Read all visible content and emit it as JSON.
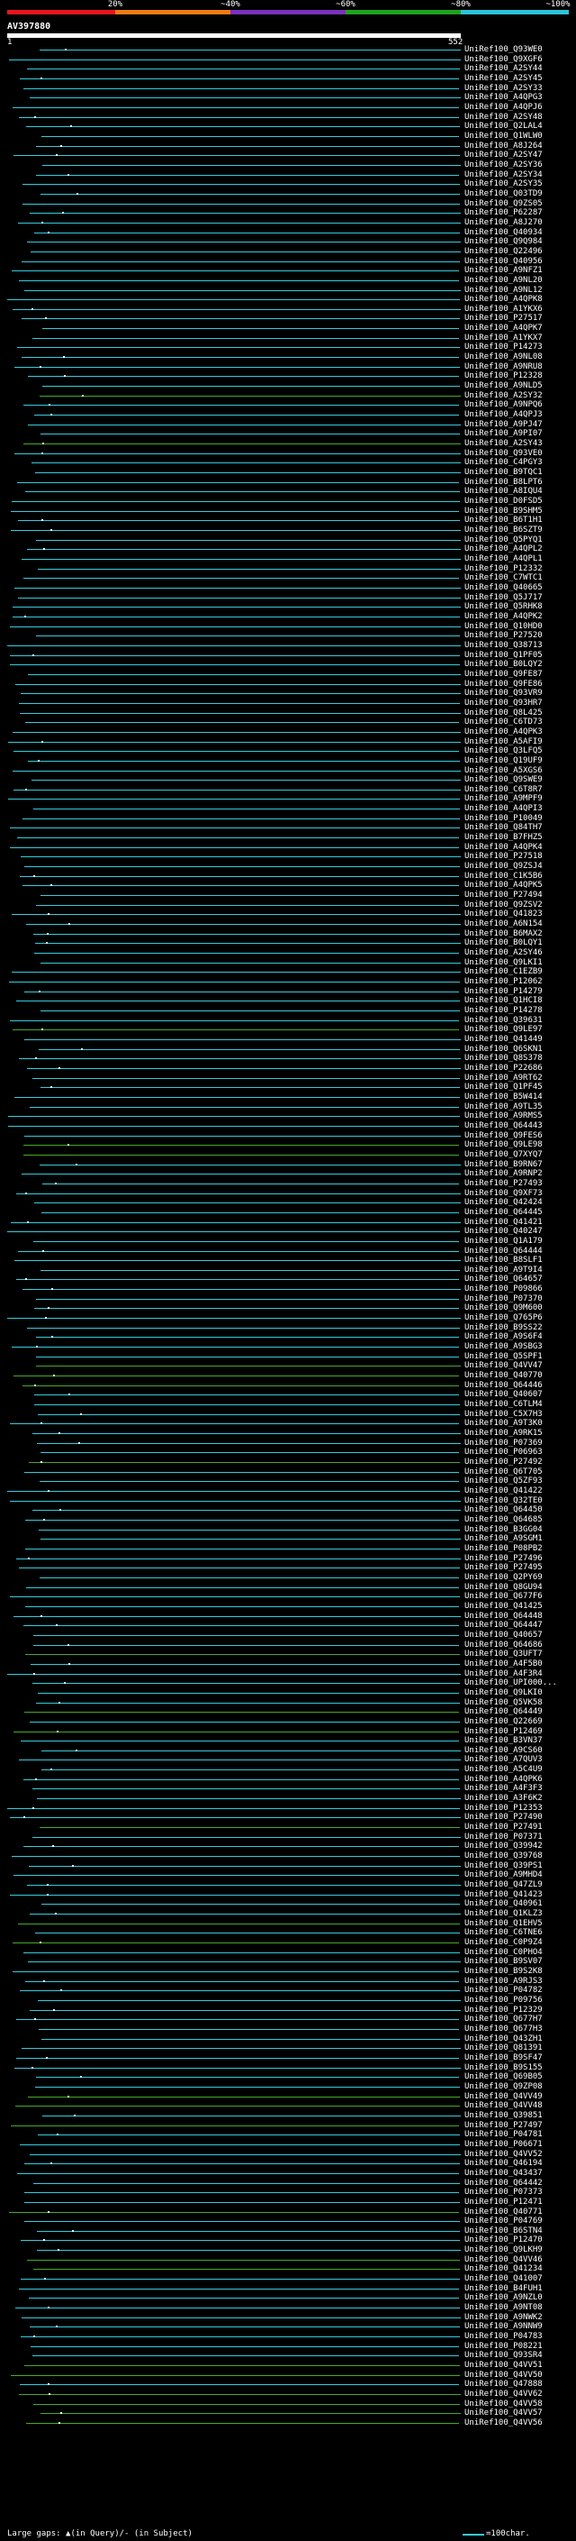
{
  "legend": {
    "labels": [
      "20%",
      "~40%",
      "~60%",
      "~80%",
      "~100%"
    ],
    "colors": [
      "#e8151c",
      "#f07a12",
      "#7b2fbf",
      "#1da31d",
      "#2ac4d8"
    ]
  },
  "query": {
    "name": "AV397880",
    "start_label": "1",
    "end_label": "552"
  },
  "footer": {
    "gap_text": "Large gaps: ▲(in Query)/- (in Subject)",
    "scale_text": "=100char."
  },
  "hits": [
    {
      "id": "UniRef100_Q93WE0",
      "color": "cyan"
    },
    {
      "id": "UniRef100_Q9XGF6",
      "color": "cyan"
    },
    {
      "id": "UniRef100_A2SY44",
      "color": "cyan"
    },
    {
      "id": "UniRef100_A2SY45",
      "color": "cyan"
    },
    {
      "id": "UniRef100_A2SY33",
      "color": "cyan"
    },
    {
      "id": "UniRef100_A4QPG3",
      "color": "cyan"
    },
    {
      "id": "UniRef100_A4QPJ6",
      "color": "cyan"
    },
    {
      "id": "UniRef100_A2SY48",
      "color": "cyan"
    },
    {
      "id": "UniRef100_Q2LAL4",
      "color": "cyan"
    },
    {
      "id": "UniRef100_Q1WLW0",
      "color": "cyan"
    },
    {
      "id": "UniRef100_A8J264",
      "color": "cyan"
    },
    {
      "id": "UniRef100_A2SY47",
      "color": "cyan"
    },
    {
      "id": "UniRef100_A2SY36",
      "color": "cyan"
    },
    {
      "id": "UniRef100_A2SY34",
      "color": "cyan"
    },
    {
      "id": "UniRef100_A2SY35",
      "color": "cyan"
    },
    {
      "id": "UniRef100_Q03TD9",
      "color": "cyan"
    },
    {
      "id": "UniRef100_Q9ZS05",
      "color": "cyan"
    },
    {
      "id": "UniRef100_P62287",
      "color": "cyan"
    },
    {
      "id": "UniRef100_A8J270",
      "color": "cyan"
    },
    {
      "id": "UniRef100_Q40934",
      "color": "cyan"
    },
    {
      "id": "UniRef100_Q9Q984",
      "color": "cyan"
    },
    {
      "id": "UniRef100_Q22496",
      "color": "cyan"
    },
    {
      "id": "UniRef100_Q40956",
      "color": "cyan"
    },
    {
      "id": "UniRef100_A9NFZ1",
      "color": "cyan"
    },
    {
      "id": "UniRef100_A9NL20",
      "color": "cyan"
    },
    {
      "id": "UniRef100_A9NL12",
      "color": "cyan"
    },
    {
      "id": "UniRef100_A4QPK8",
      "color": "cyan"
    },
    {
      "id": "UniRef100_A1YKX6",
      "color": "cyan"
    },
    {
      "id": "UniRef100_P27517",
      "color": "cyan"
    },
    {
      "id": "UniRef100_A4QPK7",
      "color": "cyan"
    },
    {
      "id": "UniRef100_A1YKX7",
      "color": "cyan"
    },
    {
      "id": "UniRef100_P14273",
      "color": "cyan"
    },
    {
      "id": "UniRef100_A9NL08",
      "color": "cyan"
    },
    {
      "id": "UniRef100_A9NRU8",
      "color": "cyan"
    },
    {
      "id": "UniRef100_P12328",
      "color": "cyan"
    },
    {
      "id": "UniRef100_A9NLD5",
      "color": "cyan"
    },
    {
      "id": "UniRef100_A2SY32",
      "color": "green"
    },
    {
      "id": "UniRef100_A9NPQ6",
      "color": "cyan"
    },
    {
      "id": "UniRef100_A4QPJ3",
      "color": "cyan"
    },
    {
      "id": "UniRef100_A9PJ47",
      "color": "cyan"
    },
    {
      "id": "UniRef100_A9PI07",
      "color": "cyan"
    },
    {
      "id": "UniRef100_A2SY43",
      "color": "green"
    },
    {
      "id": "UniRef100_Q93VE0",
      "color": "cyan"
    },
    {
      "id": "UniRef100_C4PGY3",
      "color": "cyan"
    },
    {
      "id": "UniRef100_B9TQC1",
      "color": "cyan"
    },
    {
      "id": "UniRef100_B8LPT6",
      "color": "cyan"
    },
    {
      "id": "UniRef100_A8IQU4",
      "color": "cyan"
    },
    {
      "id": "UniRef100_D0FSD5",
      "color": "cyan"
    },
    {
      "id": "UniRef100_B9SHM5",
      "color": "cyan"
    },
    {
      "id": "UniRef100_B6T1H1",
      "color": "cyan"
    },
    {
      "id": "UniRef100_B6SZT9",
      "color": "cyan"
    },
    {
      "id": "UniRef100_Q5PYQ1",
      "color": "cyan"
    },
    {
      "id": "UniRef100_A4QPL2",
      "color": "cyan"
    },
    {
      "id": "UniRef100_A4QPL1",
      "color": "cyan"
    },
    {
      "id": "UniRef100_P12332",
      "color": "cyan"
    },
    {
      "id": "UniRef100_C7WTC1",
      "color": "cyan"
    },
    {
      "id": "UniRef100_Q40665",
      "color": "cyan"
    },
    {
      "id": "UniRef100_Q5J717",
      "color": "cyan"
    },
    {
      "id": "UniRef100_Q5RHK8",
      "color": "cyan"
    },
    {
      "id": "UniRef100_A4QPK2",
      "color": "cyan"
    },
    {
      "id": "UniRef100_Q10HD0",
      "color": "cyan"
    },
    {
      "id": "UniRef100_P27520",
      "color": "cyan"
    },
    {
      "id": "UniRef100_Q38713",
      "color": "cyan"
    },
    {
      "id": "UniRef100_Q1PF05",
      "color": "cyan"
    },
    {
      "id": "UniRef100_B0LQY2",
      "color": "cyan"
    },
    {
      "id": "UniRef100_Q9FE87",
      "color": "cyan"
    },
    {
      "id": "UniRef100_Q9FE86",
      "color": "cyan"
    },
    {
      "id": "UniRef100_Q93VR9",
      "color": "cyan"
    },
    {
      "id": "UniRef100_Q93HR7",
      "color": "cyan"
    },
    {
      "id": "UniRef100_Q8L425",
      "color": "cyan"
    },
    {
      "id": "UniRef100_C6TD73",
      "color": "cyan"
    },
    {
      "id": "UniRef100_A4QPK3",
      "color": "cyan"
    },
    {
      "id": "UniRef100_A5AFI9",
      "color": "cyan"
    },
    {
      "id": "UniRef100_Q3LFQ5",
      "color": "cyan"
    },
    {
      "id": "UniRef100_Q19UF9",
      "color": "cyan"
    },
    {
      "id": "UniRef100_A5XGS6",
      "color": "cyan"
    },
    {
      "id": "UniRef100_Q9SWE9",
      "color": "cyan"
    },
    {
      "id": "UniRef100_C6T8R7",
      "color": "cyan"
    },
    {
      "id": "UniRef100_A9MPF9",
      "color": "cyan"
    },
    {
      "id": "UniRef100_A4QPI3",
      "color": "cyan"
    },
    {
      "id": "UniRef100_P10049",
      "color": "cyan"
    },
    {
      "id": "UniRef100_Q84TH7",
      "color": "cyan"
    },
    {
      "id": "UniRef100_B7FHZ5",
      "color": "cyan"
    },
    {
      "id": "UniRef100_A4QPK4",
      "color": "cyan"
    },
    {
      "id": "UniRef100_P27518",
      "color": "cyan"
    },
    {
      "id": "UniRef100_Q9ZSJ4",
      "color": "cyan"
    },
    {
      "id": "UniRef100_C1K5B6",
      "color": "cyan"
    },
    {
      "id": "UniRef100_A4QPK5",
      "color": "cyan"
    },
    {
      "id": "UniRef100_P27494",
      "color": "cyan"
    },
    {
      "id": "UniRef100_Q9ZSV2",
      "color": "cyan"
    },
    {
      "id": "UniRef100_Q41823",
      "color": "cyan"
    },
    {
      "id": "UniRef100_A6N154",
      "color": "cyan"
    },
    {
      "id": "UniRef100_B6MAX2",
      "color": "cyan"
    },
    {
      "id": "UniRef100_B0LQY1",
      "color": "cyan"
    },
    {
      "id": "UniRef100_A2SY46",
      "color": "cyan"
    },
    {
      "id": "UniRef100_Q9LKI1",
      "color": "cyan"
    },
    {
      "id": "UniRef100_C1EZB9",
      "color": "cyan"
    },
    {
      "id": "UniRef100_P12062",
      "color": "cyan"
    },
    {
      "id": "UniRef100_P14279",
      "color": "cyan"
    },
    {
      "id": "UniRef100_Q1HCI8",
      "color": "cyan"
    },
    {
      "id": "UniRef100_P14278",
      "color": "cyan"
    },
    {
      "id": "UniRef100_Q39631",
      "color": "cyan"
    },
    {
      "id": "UniRef100_Q9LE97",
      "color": "green"
    },
    {
      "id": "UniRef100_Q41449",
      "color": "cyan"
    },
    {
      "id": "UniRef100_Q6SKN1",
      "color": "cyan"
    },
    {
      "id": "UniRef100_Q8S378",
      "color": "cyan"
    },
    {
      "id": "UniRef100_P22686",
      "color": "cyan"
    },
    {
      "id": "UniRef100_A9RT62",
      "color": "cyan"
    },
    {
      "id": "UniRef100_Q1PF45",
      "color": "cyan"
    },
    {
      "id": "UniRef100_B5W414",
      "color": "cyan"
    },
    {
      "id": "UniRef100_A9TL35",
      "color": "cyan"
    },
    {
      "id": "UniRef100_A9RMS5",
      "color": "cyan"
    },
    {
      "id": "UniRef100_Q64443",
      "color": "cyan"
    },
    {
      "id": "UniRef100_Q9FES6",
      "color": "cyan"
    },
    {
      "id": "UniRef100_Q9LE98",
      "color": "green"
    },
    {
      "id": "UniRef100_Q7XYQ7",
      "color": "green"
    },
    {
      "id": "UniRef100_B9RN67",
      "color": "cyan"
    },
    {
      "id": "UniRef100_A9RNP2",
      "color": "cyan"
    },
    {
      "id": "UniRef100_P27493",
      "color": "cyan"
    },
    {
      "id": "UniRef100_Q9XF73",
      "color": "cyan"
    },
    {
      "id": "UniRef100_Q42424",
      "color": "cyan"
    },
    {
      "id": "UniRef100_Q64445",
      "color": "cyan"
    },
    {
      "id": "UniRef100_Q41421",
      "color": "cyan"
    },
    {
      "id": "UniRef100_Q40247",
      "color": "cyan"
    },
    {
      "id": "UniRef100_Q1A179",
      "color": "cyan"
    },
    {
      "id": "UniRef100_Q64444",
      "color": "cyan"
    },
    {
      "id": "UniRef100_B8SLF1",
      "color": "cyan"
    },
    {
      "id": "UniRef100_A9T9I4",
      "color": "cyan"
    },
    {
      "id": "UniRef100_Q64657",
      "color": "cyan"
    },
    {
      "id": "UniRef100_P09866",
      "color": "cyan"
    },
    {
      "id": "UniRef100_P07370",
      "color": "cyan"
    },
    {
      "id": "UniRef100_Q9M600",
      "color": "cyan"
    },
    {
      "id": "UniRef100_Q765P6",
      "color": "cyan"
    },
    {
      "id": "UniRef100_B9SS22",
      "color": "cyan"
    },
    {
      "id": "UniRef100_A9S6F4",
      "color": "cyan"
    },
    {
      "id": "UniRef100_A9SBG3",
      "color": "cyan"
    },
    {
      "id": "UniRef100_Q5SPF1",
      "color": "cyan"
    },
    {
      "id": "UniRef100_Q4VV47",
      "color": "green"
    },
    {
      "id": "UniRef100_Q40770",
      "color": "green"
    },
    {
      "id": "UniRef100_Q64446",
      "color": "green"
    },
    {
      "id": "UniRef100_Q40607",
      "color": "cyan"
    },
    {
      "id": "UniRef100_C6TLM4",
      "color": "cyan"
    },
    {
      "id": "UniRef100_C5X7H3",
      "color": "cyan"
    },
    {
      "id": "UniRef100_A9T3K0",
      "color": "cyan"
    },
    {
      "id": "UniRef100_A9RK15",
      "color": "cyan"
    },
    {
      "id": "UniRef100_P07369",
      "color": "cyan"
    },
    {
      "id": "UniRef100_P06963",
      "color": "cyan"
    },
    {
      "id": "UniRef100_P27492",
      "color": "green"
    },
    {
      "id": "UniRef100_Q6T705",
      "color": "cyan"
    },
    {
      "id": "UniRef100_Q5ZF93",
      "color": "cyan"
    },
    {
      "id": "UniRef100_Q41422",
      "color": "cyan"
    },
    {
      "id": "UniRef100_Q32TE0",
      "color": "cyan"
    },
    {
      "id": "UniRef100_Q64450",
      "color": "cyan"
    },
    {
      "id": "UniRef100_Q64685",
      "color": "cyan"
    },
    {
      "id": "UniRef100_B3GG04",
      "color": "cyan"
    },
    {
      "id": "UniRef100_A9SGM1",
      "color": "cyan"
    },
    {
      "id": "UniRef100_P08PB2",
      "color": "cyan"
    },
    {
      "id": "UniRef100_P27496",
      "color": "cyan"
    },
    {
      "id": "UniRef100_P27495",
      "color": "cyan"
    },
    {
      "id": "UniRef100_Q2PY69",
      "color": "cyan"
    },
    {
      "id": "UniRef100_Q8GU94",
      "color": "cyan"
    },
    {
      "id": "UniRef100_Q677F6",
      "color": "cyan"
    },
    {
      "id": "UniRef100_Q41425",
      "color": "cyan"
    },
    {
      "id": "UniRef100_Q64448",
      "color": "cyan"
    },
    {
      "id": "UniRef100_Q64447",
      "color": "cyan"
    },
    {
      "id": "UniRef100_Q40657",
      "color": "cyan"
    },
    {
      "id": "UniRef100_Q64686",
      "color": "cyan"
    },
    {
      "id": "UniRef100_Q3UFT7",
      "color": "green"
    },
    {
      "id": "UniRef100_A4F5B0",
      "color": "cyan"
    },
    {
      "id": "UniRef100_A4F3R4",
      "color": "cyan"
    },
    {
      "id": "UniRef100_UPI000...",
      "color": "cyan"
    },
    {
      "id": "UniRef100_Q9LKI0",
      "color": "cyan"
    },
    {
      "id": "UniRef100_Q5VK58",
      "color": "cyan"
    },
    {
      "id": "UniRef100_Q64449",
      "color": "green"
    },
    {
      "id": "UniRef100_Q22669",
      "color": "cyan"
    },
    {
      "id": "UniRef100_P12469",
      "color": "green"
    },
    {
      "id": "UniRef100_B3VN37",
      "color": "cyan"
    },
    {
      "id": "UniRef100_A9CS60",
      "color": "cyan"
    },
    {
      "id": "UniRef100_A7QUV3",
      "color": "cyan"
    },
    {
      "id": "UniRef100_A5C4U9",
      "color": "cyan"
    },
    {
      "id": "UniRef100_A4QPK6",
      "color": "cyan"
    },
    {
      "id": "UniRef100_A4F3F3",
      "color": "cyan"
    },
    {
      "id": "UniRef100_A3F6K2",
      "color": "cyan"
    },
    {
      "id": "UniRef100_P12353",
      "color": "cyan"
    },
    {
      "id": "UniRef100_P27490",
      "color": "cyan"
    },
    {
      "id": "UniRef100_P27491",
      "color": "green"
    },
    {
      "id": "UniRef100_P07371",
      "color": "cyan"
    },
    {
      "id": "UniRef100_Q39942",
      "color": "cyan"
    },
    {
      "id": "UniRef100_Q39768",
      "color": "cyan"
    },
    {
      "id": "UniRef100_Q39PS1",
      "color": "cyan"
    },
    {
      "id": "UniRef100_A9MHD4",
      "color": "cyan"
    },
    {
      "id": "UniRef100_Q47ZL9",
      "color": "cyan"
    },
    {
      "id": "UniRef100_Q41423",
      "color": "cyan"
    },
    {
      "id": "UniRef100_Q40961",
      "color": "cyan"
    },
    {
      "id": "UniRef100_Q1KLZ3",
      "color": "cyan"
    },
    {
      "id": "UniRef100_Q1EHV5",
      "color": "green"
    },
    {
      "id": "UniRef100_C6TNE6",
      "color": "cyan"
    },
    {
      "id": "UniRef100_C0P9Z4",
      "color": "green"
    },
    {
      "id": "UniRef100_C0PHO4",
      "color": "cyan"
    },
    {
      "id": "UniRef100_B9SV07",
      "color": "cyan"
    },
    {
      "id": "UniRef100_B9S2K8",
      "color": "cyan"
    },
    {
      "id": "UniRef100_A9RJS3",
      "color": "cyan"
    },
    {
      "id": "UniRef100_P04782",
      "color": "cyan"
    },
    {
      "id": "UniRef100_P09756",
      "color": "cyan"
    },
    {
      "id": "UniRef100_P12329",
      "color": "cyan"
    },
    {
      "id": "UniRef100_Q677H7",
      "color": "cyan"
    },
    {
      "id": "UniRef100_Q677H3",
      "color": "cyan"
    },
    {
      "id": "UniRef100_Q43ZH1",
      "color": "cyan"
    },
    {
      "id": "UniRef100_Q81391",
      "color": "cyan"
    },
    {
      "id": "UniRef100_B9SF47",
      "color": "cyan"
    },
    {
      "id": "UniRef100_B9S155",
      "color": "cyan"
    },
    {
      "id": "UniRef100_Q69B05",
      "color": "cyan"
    },
    {
      "id": "UniRef100_Q9ZP08",
      "color": "cyan"
    },
    {
      "id": "UniRef100_Q4VV49",
      "color": "green"
    },
    {
      "id": "UniRef100_Q4VV48",
      "color": "green"
    },
    {
      "id": "UniRef100_Q39851",
      "color": "cyan"
    },
    {
      "id": "UniRef100_P27497",
      "color": "green"
    },
    {
      "id": "UniRef100_P04781",
      "color": "cyan"
    },
    {
      "id": "UniRef100_P06671",
      "color": "cyan"
    },
    {
      "id": "UniRef100_Q4VV52",
      "color": "cyan"
    },
    {
      "id": "UniRef100_Q46194",
      "color": "cyan"
    },
    {
      "id": "UniRef100_Q43437",
      "color": "cyan"
    },
    {
      "id": "UniRef100_Q64442",
      "color": "cyan"
    },
    {
      "id": "UniRef100_P07373",
      "color": "cyan"
    },
    {
      "id": "UniRef100_P12471",
      "color": "cyan"
    },
    {
      "id": "UniRef100_Q40771",
      "color": "green"
    },
    {
      "id": "UniRef100_P04769",
      "color": "cyan"
    },
    {
      "id": "UniRef100_B6STN4",
      "color": "cyan"
    },
    {
      "id": "UniRef100_P12470",
      "color": "cyan"
    },
    {
      "id": "UniRef100_Q9LKH9",
      "color": "cyan"
    },
    {
      "id": "UniRef100_Q4VV46",
      "color": "green"
    },
    {
      "id": "UniRef100_Q41234",
      "color": "green"
    },
    {
      "id": "UniRef100_Q41007",
      "color": "cyan"
    },
    {
      "id": "UniRef100_B4FUH1",
      "color": "cyan"
    },
    {
      "id": "UniRef100_A9NZL0",
      "color": "cyan"
    },
    {
      "id": "UniRef100_A9NT08",
      "color": "cyan"
    },
    {
      "id": "UniRef100_A9NWK2",
      "color": "cyan"
    },
    {
      "id": "UniRef100_A9NNW9",
      "color": "cyan"
    },
    {
      "id": "UniRef100_P04783",
      "color": "cyan"
    },
    {
      "id": "UniRef100_P08221",
      "color": "cyan"
    },
    {
      "id": "UniRef100_Q93SR4",
      "color": "cyan"
    },
    {
      "id": "UniRef100_Q4VV51",
      "color": "green"
    },
    {
      "id": "UniRef100_Q4VV50",
      "color": "green"
    },
    {
      "id": "UniRef100_Q47888",
      "color": "cyan"
    },
    {
      "id": "UniRef100_Q4VV62",
      "color": "green"
    },
    {
      "id": "UniRef100_Q4VV58",
      "color": "green"
    },
    {
      "id": "UniRef100_Q4VV57",
      "color": "green"
    },
    {
      "id": "UniRef100_Q4VV56",
      "color": "green"
    }
  ]
}
